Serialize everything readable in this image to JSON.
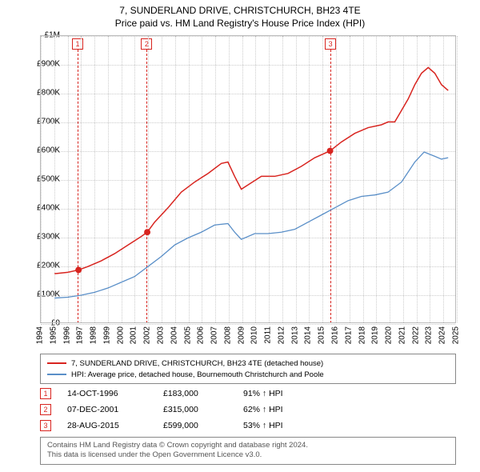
{
  "title": "7, SUNDERLAND DRIVE, CHRISTCHURCH, BH23 4TE",
  "subtitle": "Price paid vs. HM Land Registry's House Price Index (HPI)",
  "chart": {
    "type": "line",
    "x_range": [
      1994,
      2025
    ],
    "y_range": [
      0,
      1000000
    ],
    "y_ticks": [
      0,
      100000,
      200000,
      300000,
      400000,
      500000,
      600000,
      700000,
      800000,
      900000,
      1000000
    ],
    "y_tick_labels": [
      "£0",
      "£100K",
      "£200K",
      "£300K",
      "£400K",
      "£500K",
      "£600K",
      "£700K",
      "£800K",
      "£900K",
      "£1M"
    ],
    "x_ticks": [
      1994,
      1995,
      1996,
      1997,
      1998,
      1999,
      2000,
      2001,
      2002,
      2003,
      2004,
      2005,
      2006,
      2007,
      2008,
      2009,
      2010,
      2011,
      2012,
      2013,
      2014,
      2015,
      2016,
      2017,
      2018,
      2019,
      2020,
      2021,
      2022,
      2023,
      2024,
      2025
    ],
    "grid_color": "#cccccc",
    "background_color": "#ffffff",
    "series": [
      {
        "name": "price_paid",
        "color": "#d8241f",
        "width": 1.5,
        "points": [
          [
            1995.0,
            170000
          ],
          [
            1996.0,
            175000
          ],
          [
            1996.8,
            183000
          ],
          [
            1997.5,
            195000
          ],
          [
            1998.5,
            215000
          ],
          [
            1999.5,
            240000
          ],
          [
            2000.5,
            270000
          ],
          [
            2001.5,
            300000
          ],
          [
            2001.95,
            315000
          ],
          [
            2002.5,
            350000
          ],
          [
            2003.5,
            400000
          ],
          [
            2004.5,
            455000
          ],
          [
            2005.5,
            490000
          ],
          [
            2006.5,
            520000
          ],
          [
            2007.5,
            555000
          ],
          [
            2008.0,
            560000
          ],
          [
            2008.5,
            510000
          ],
          [
            2009.0,
            465000
          ],
          [
            2009.5,
            480000
          ],
          [
            2010.5,
            510000
          ],
          [
            2011.5,
            510000
          ],
          [
            2012.5,
            520000
          ],
          [
            2013.5,
            545000
          ],
          [
            2014.5,
            575000
          ],
          [
            2015.65,
            599000
          ],
          [
            2016.5,
            630000
          ],
          [
            2017.5,
            660000
          ],
          [
            2018.5,
            680000
          ],
          [
            2019.5,
            690000
          ],
          [
            2020.0,
            700000
          ],
          [
            2020.5,
            700000
          ],
          [
            2021.0,
            740000
          ],
          [
            2021.5,
            780000
          ],
          [
            2022.0,
            830000
          ],
          [
            2022.5,
            870000
          ],
          [
            2023.0,
            890000
          ],
          [
            2023.5,
            870000
          ],
          [
            2024.0,
            830000
          ],
          [
            2024.5,
            810000
          ]
        ]
      },
      {
        "name": "hpi",
        "color": "#5a8fc8",
        "width": 1.3,
        "points": [
          [
            1995.0,
            85000
          ],
          [
            1996.0,
            88000
          ],
          [
            1997.0,
            95000
          ],
          [
            1998.0,
            105000
          ],
          [
            1999.0,
            120000
          ],
          [
            2000.0,
            140000
          ],
          [
            2001.0,
            160000
          ],
          [
            2002.0,
            195000
          ],
          [
            2003.0,
            230000
          ],
          [
            2004.0,
            270000
          ],
          [
            2005.0,
            295000
          ],
          [
            2006.0,
            315000
          ],
          [
            2007.0,
            340000
          ],
          [
            2008.0,
            345000
          ],
          [
            2008.5,
            315000
          ],
          [
            2009.0,
            290000
          ],
          [
            2010.0,
            310000
          ],
          [
            2011.0,
            310000
          ],
          [
            2012.0,
            315000
          ],
          [
            2013.0,
            325000
          ],
          [
            2014.0,
            350000
          ],
          [
            2015.0,
            375000
          ],
          [
            2016.0,
            400000
          ],
          [
            2017.0,
            425000
          ],
          [
            2018.0,
            440000
          ],
          [
            2019.0,
            445000
          ],
          [
            2020.0,
            455000
          ],
          [
            2021.0,
            490000
          ],
          [
            2022.0,
            560000
          ],
          [
            2022.7,
            595000
          ],
          [
            2023.5,
            580000
          ],
          [
            2024.0,
            570000
          ],
          [
            2024.5,
            575000
          ]
        ]
      }
    ],
    "markers": [
      {
        "n": "1",
        "x": 1996.8,
        "y": 183000,
        "color": "#d8241f"
      },
      {
        "n": "2",
        "x": 2001.95,
        "y": 315000,
        "color": "#d8241f"
      },
      {
        "n": "3",
        "x": 2015.65,
        "y": 599000,
        "color": "#d8241f"
      }
    ]
  },
  "legend": {
    "items": [
      {
        "color": "#d8241f",
        "label": "7, SUNDERLAND DRIVE, CHRISTCHURCH, BH23 4TE (detached house)"
      },
      {
        "color": "#5a8fc8",
        "label": "HPI: Average price, detached house, Bournemouth Christchurch and Poole"
      }
    ]
  },
  "events": [
    {
      "n": "1",
      "color": "#d8241f",
      "date": "14-OCT-1996",
      "price": "£183,000",
      "pct": "91% ↑ HPI"
    },
    {
      "n": "2",
      "color": "#d8241f",
      "date": "07-DEC-2001",
      "price": "£315,000",
      "pct": "62% ↑ HPI"
    },
    {
      "n": "3",
      "color": "#d8241f",
      "date": "28-AUG-2015",
      "price": "£599,000",
      "pct": "53% ↑ HPI"
    }
  ],
  "footer": {
    "line1": "Contains HM Land Registry data © Crown copyright and database right 2024.",
    "line2": "This data is licensed under the Open Government Licence v3.0."
  }
}
